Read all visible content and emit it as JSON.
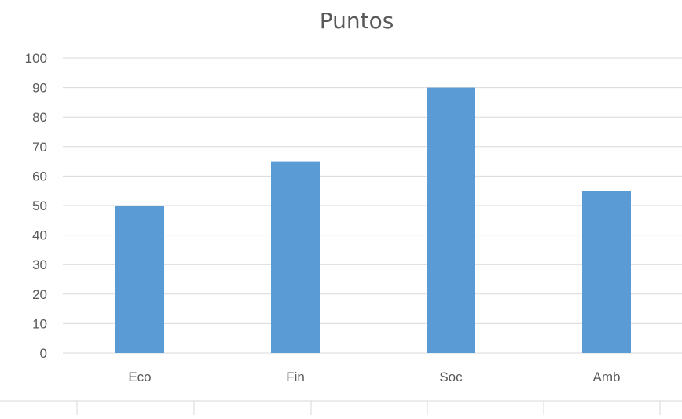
{
  "chart_data": {
    "type": "bar",
    "title": "Puntos",
    "categories": [
      "Eco",
      "Fin",
      "Soc",
      "Amb"
    ],
    "values": [
      50,
      65,
      90,
      55
    ],
    "ylim": [
      0,
      100
    ],
    "yticks": [
      0,
      10,
      20,
      30,
      40,
      50,
      60,
      70,
      80,
      90,
      100
    ],
    "xlabel": "",
    "ylabel": "",
    "grid": true,
    "bar_color": "#5B9BD5",
    "grid_color": "#D9D9D9",
    "text_color": "#595959"
  }
}
